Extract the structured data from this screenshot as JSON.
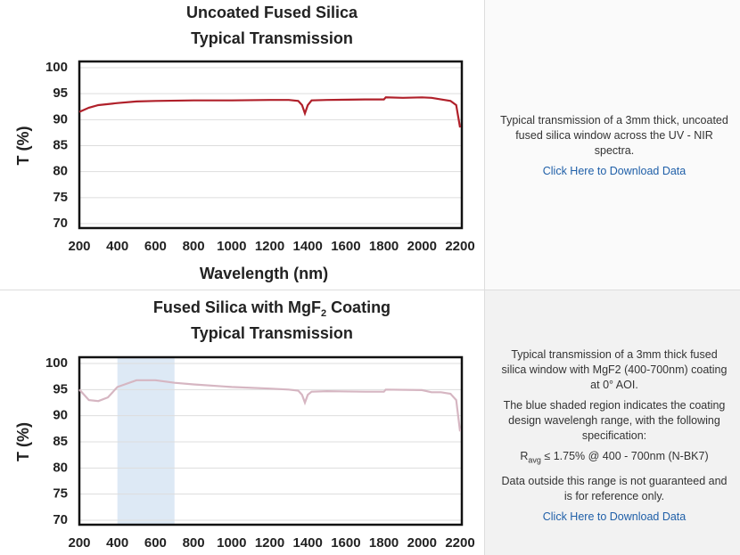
{
  "chart_data": [
    {
      "type": "line",
      "title": [
        "Uncoated Fused Silica",
        "Typical Transmission"
      ],
      "y_label": "T (%)",
      "x_label": "Wavelength (nm)",
      "x": [
        200,
        250,
        300,
        400,
        500,
        600,
        800,
        1000,
        1200,
        1300,
        1350,
        1370,
        1385,
        1400,
        1420,
        1500,
        1700,
        1800,
        1810,
        1900,
        2000,
        2050,
        2100,
        2150,
        2180,
        2200
      ],
      "values": [
        91.5,
        92.3,
        92.8,
        93.2,
        93.5,
        93.6,
        93.7,
        93.7,
        93.8,
        93.8,
        93.6,
        92.8,
        91.2,
        92.8,
        93.7,
        93.8,
        93.9,
        93.9,
        94.3,
        94.2,
        94.3,
        94.2,
        93.9,
        93.6,
        92.8,
        88.5
      ],
      "color": "#b0202a",
      "xlim": [
        200,
        2200
      ],
      "ylim": [
        70,
        100
      ],
      "xticks": [
        200,
        400,
        600,
        800,
        1000,
        1200,
        1400,
        1600,
        1800,
        2000,
        2200
      ],
      "yticks": [
        70,
        75,
        80,
        85,
        90,
        95,
        100
      ],
      "grid": true
    },
    {
      "type": "line",
      "title": [
        "Fused Silica with MgF",
        "2",
        " Coating",
        "Typical Transmission"
      ],
      "y_label": "T (%)",
      "x": [
        200,
        250,
        300,
        350,
        400,
        500,
        600,
        700,
        800,
        1000,
        1200,
        1300,
        1350,
        1370,
        1385,
        1400,
        1420,
        1500,
        1700,
        1800,
        1810,
        2000,
        2050,
        2100,
        2150,
        2180,
        2200
      ],
      "values": [
        95,
        93,
        92.8,
        93.5,
        95.5,
        96.8,
        96.8,
        96.3,
        96,
        95.5,
        95.2,
        95,
        94.8,
        94,
        92.5,
        94,
        94.6,
        94.7,
        94.6,
        94.6,
        95,
        94.9,
        94.5,
        94.5,
        94.2,
        93,
        87
      ],
      "color": "#d6b6c2",
      "shaded_region": [
        400,
        700
      ],
      "shade_color": "#dde9f5",
      "xlim": [
        200,
        2200
      ],
      "ylim": [
        70,
        100
      ],
      "xticks": [
        200,
        400,
        600,
        800,
        1000,
        1200,
        1400,
        1600,
        1800,
        2000,
        2200
      ],
      "yticks": [
        70,
        75,
        80,
        85,
        90,
        95,
        100
      ],
      "grid": true
    }
  ],
  "descriptions": [
    {
      "paragraphs": [
        "Typical transmission of a 3mm thick, uncoated fused silica window across the UV - NIR spectra."
      ],
      "link": "Click Here to Download Data"
    },
    {
      "paragraphs": [
        "Typical transmission of a 3mm thick fused silica window with MgF2 (400-700nm) coating at 0° AOI.",
        "The blue shaded region indicates the coating design wavelengh range, with the following specification:"
      ],
      "spec": [
        "R",
        "avg",
        " ≤ 1.75% @ 400 - 700nm (N-BK7)"
      ],
      "note": "Data outside this range is not guaranteed and is for reference only.",
      "link": "Click Here to Download Data"
    }
  ]
}
